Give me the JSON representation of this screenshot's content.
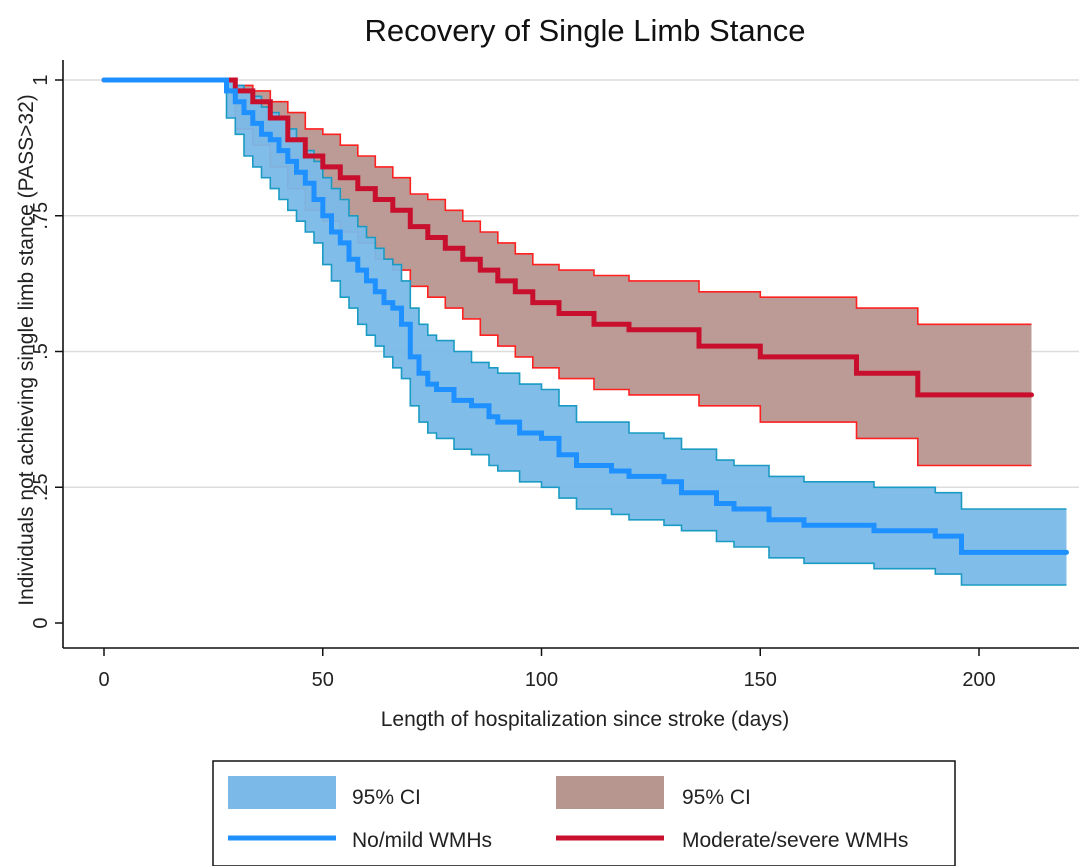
{
  "chart_data": {
    "type": "line",
    "title": "Recovery of Single Limb Stance",
    "xlabel": "Length of hospitalization since stroke (days)",
    "ylabel": "Individuals not achieving single limb stance (PASS>32)",
    "xlim": [
      0,
      222
    ],
    "ylim": [
      0,
      1
    ],
    "xticks": [
      0,
      50,
      100,
      150,
      200
    ],
    "xtick_labels": [
      "0",
      "50",
      "100",
      "150",
      "200"
    ],
    "yticks": [
      0,
      0.25,
      0.5,
      0.75,
      1
    ],
    "ytick_labels": [
      "0",
      ".25",
      ".5",
      ".75",
      "1"
    ],
    "grid": "horizontal",
    "legend_position": "bottom",
    "series": [
      {
        "name": "No/mild WMHs",
        "color": "#1e90ff",
        "step": true,
        "x": [
          0,
          26,
          28,
          30,
          32,
          34,
          36,
          38,
          40,
          42,
          44,
          46,
          48,
          50,
          52,
          54,
          56,
          58,
          60,
          62,
          64,
          66,
          68,
          70,
          72,
          74,
          76,
          80,
          84,
          88,
          90,
          95,
          100,
          104,
          108,
          116,
          120,
          128,
          132,
          140,
          144,
          152,
          160,
          176,
          190,
          196,
          220
        ],
        "y": [
          1.0,
          1.0,
          0.98,
          0.96,
          0.94,
          0.92,
          0.9,
          0.89,
          0.87,
          0.85,
          0.83,
          0.81,
          0.78,
          0.75,
          0.72,
          0.7,
          0.67,
          0.65,
          0.63,
          0.61,
          0.59,
          0.58,
          0.55,
          0.49,
          0.46,
          0.44,
          0.43,
          0.41,
          0.4,
          0.38,
          0.37,
          0.35,
          0.34,
          0.31,
          0.29,
          0.28,
          0.27,
          0.26,
          0.24,
          0.22,
          0.21,
          0.19,
          0.18,
          0.17,
          0.16,
          0.13,
          0.13
        ],
        "ci_lower": [
          1.0,
          1.0,
          0.93,
          0.9,
          0.86,
          0.84,
          0.82,
          0.8,
          0.78,
          0.76,
          0.74,
          0.72,
          0.7,
          0.66,
          0.63,
          0.6,
          0.58,
          0.55,
          0.53,
          0.51,
          0.49,
          0.47,
          0.45,
          0.4,
          0.37,
          0.35,
          0.34,
          0.32,
          0.31,
          0.29,
          0.28,
          0.26,
          0.25,
          0.23,
          0.21,
          0.2,
          0.19,
          0.18,
          0.17,
          0.15,
          0.14,
          0.12,
          0.11,
          0.1,
          0.09,
          0.07,
          0.07
        ],
        "ci_upper": [
          1.0,
          1.0,
          1.0,
          0.99,
          0.98,
          0.97,
          0.95,
          0.94,
          0.93,
          0.91,
          0.89,
          0.87,
          0.85,
          0.82,
          0.8,
          0.78,
          0.75,
          0.73,
          0.71,
          0.69,
          0.67,
          0.66,
          0.63,
          0.58,
          0.55,
          0.53,
          0.52,
          0.5,
          0.48,
          0.47,
          0.46,
          0.44,
          0.43,
          0.4,
          0.37,
          0.37,
          0.35,
          0.34,
          0.32,
          0.3,
          0.29,
          0.27,
          0.26,
          0.25,
          0.24,
          0.21,
          0.21
        ]
      },
      {
        "name": "Moderate/severe WMHs",
        "color": "#c8102e",
        "step": true,
        "x": [
          0,
          26,
          30,
          34,
          38,
          42,
          46,
          50,
          54,
          58,
          62,
          66,
          70,
          74,
          78,
          82,
          86,
          90,
          94,
          98,
          104,
          112,
          120,
          136,
          150,
          172,
          186,
          212
        ],
        "y": [
          1.0,
          1.0,
          0.98,
          0.96,
          0.93,
          0.89,
          0.86,
          0.84,
          0.82,
          0.8,
          0.78,
          0.76,
          0.73,
          0.71,
          0.69,
          0.67,
          0.65,
          0.63,
          0.61,
          0.59,
          0.57,
          0.55,
          0.54,
          0.51,
          0.49,
          0.46,
          0.42,
          0.42
        ],
        "ci_lower": [
          1.0,
          1.0,
          0.91,
          0.88,
          0.84,
          0.8,
          0.76,
          0.74,
          0.72,
          0.7,
          0.67,
          0.65,
          0.62,
          0.6,
          0.58,
          0.56,
          0.53,
          0.51,
          0.49,
          0.47,
          0.45,
          0.43,
          0.42,
          0.4,
          0.37,
          0.34,
          0.29,
          0.29
        ],
        "ci_upper": [
          1.0,
          1.0,
          0.99,
          0.98,
          0.96,
          0.94,
          0.91,
          0.9,
          0.88,
          0.86,
          0.84,
          0.82,
          0.79,
          0.78,
          0.76,
          0.74,
          0.72,
          0.7,
          0.68,
          0.66,
          0.65,
          0.64,
          0.63,
          0.61,
          0.6,
          0.58,
          0.55,
          0.55
        ]
      }
    ],
    "legend": [
      {
        "label": "95% CI",
        "kind": "band",
        "color": "#7ab9e8"
      },
      {
        "label": "95% CI",
        "kind": "band",
        "color": "#b89690"
      },
      {
        "label": "No/mild WMHs",
        "kind": "line",
        "color": "#1e90ff"
      },
      {
        "label": "Moderate/severe WMHs",
        "kind": "line",
        "color": "#c8102e"
      }
    ],
    "colors": {
      "blue_band_fill": "#7ab9e8",
      "blue_band_edge": "#1a9bc4",
      "red_band_fill": "#b89690",
      "red_band_edge": "#ff2020",
      "gridline": "#dcdcdc"
    }
  }
}
